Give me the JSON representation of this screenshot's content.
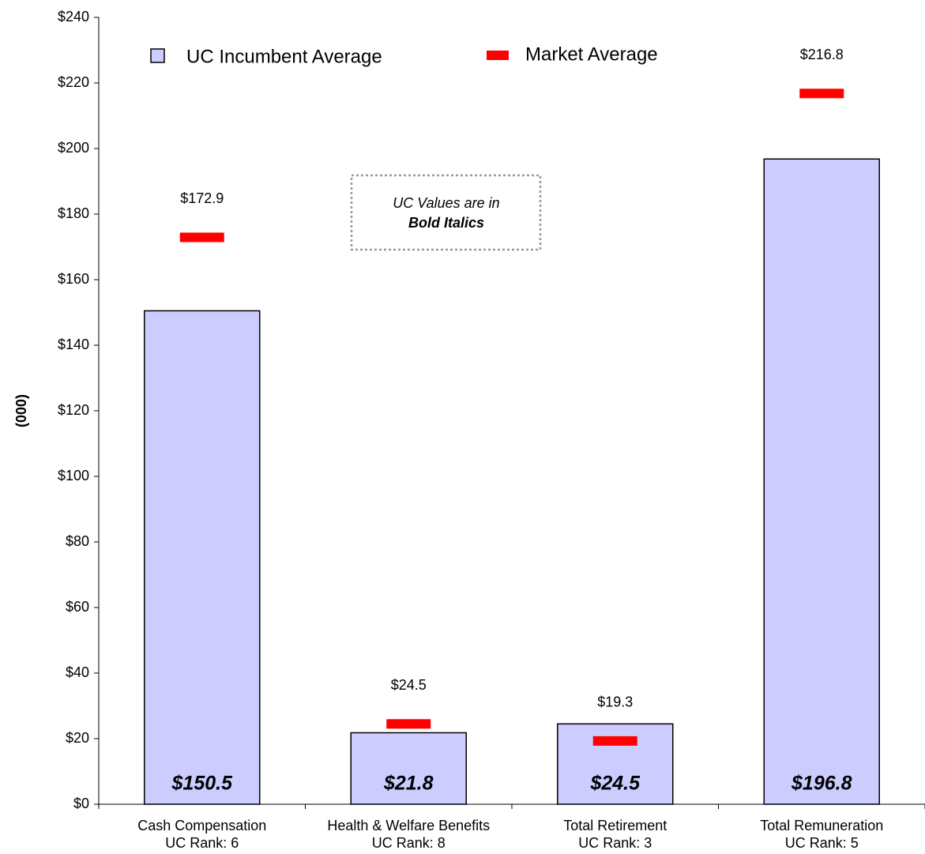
{
  "chart_data": {
    "type": "bar",
    "y_label": "(000)",
    "categories": [
      "Cash Compensation",
      "Health & Welfare Benefits",
      "Total Retirement",
      "Total Remuneration"
    ],
    "category_ranks": [
      "UC Rank: 6",
      "UC Rank: 8",
      "UC Rank: 3",
      "UC Rank: 5"
    ],
    "series": [
      {
        "name": "UC Incumbent Average",
        "color": "#ccccff",
        "values": [
          150.5,
          21.8,
          24.5,
          196.8
        ],
        "value_labels": [
          "$150.5",
          "$21.8",
          "$24.5",
          "$196.8"
        ]
      },
      {
        "name": "Market Average",
        "color": "#ff0000",
        "values": [
          172.9,
          24.5,
          19.3,
          216.8
        ],
        "value_labels": [
          "$172.9",
          "$24.5",
          "$19.3",
          "$216.8"
        ]
      }
    ],
    "annotation": [
      "UC Values are in",
      "Bold Italics"
    ],
    "ylim": [
      0,
      240
    ],
    "yticks": [
      {
        "value": 0,
        "label": "$0"
      },
      {
        "value": 20,
        "label": "$20"
      },
      {
        "value": 40,
        "label": "$40"
      },
      {
        "value": 60,
        "label": "$60"
      },
      {
        "value": 80,
        "label": "$80"
      },
      {
        "value": 100,
        "label": "$100"
      },
      {
        "value": 120,
        "label": "$120"
      },
      {
        "value": 140,
        "label": "$140"
      },
      {
        "value": 160,
        "label": "$160"
      },
      {
        "value": 180,
        "label": "$180"
      },
      {
        "value": 200,
        "label": "$200"
      },
      {
        "value": 220,
        "label": "$220"
      },
      {
        "value": 240,
        "label": "$240"
      }
    ]
  }
}
